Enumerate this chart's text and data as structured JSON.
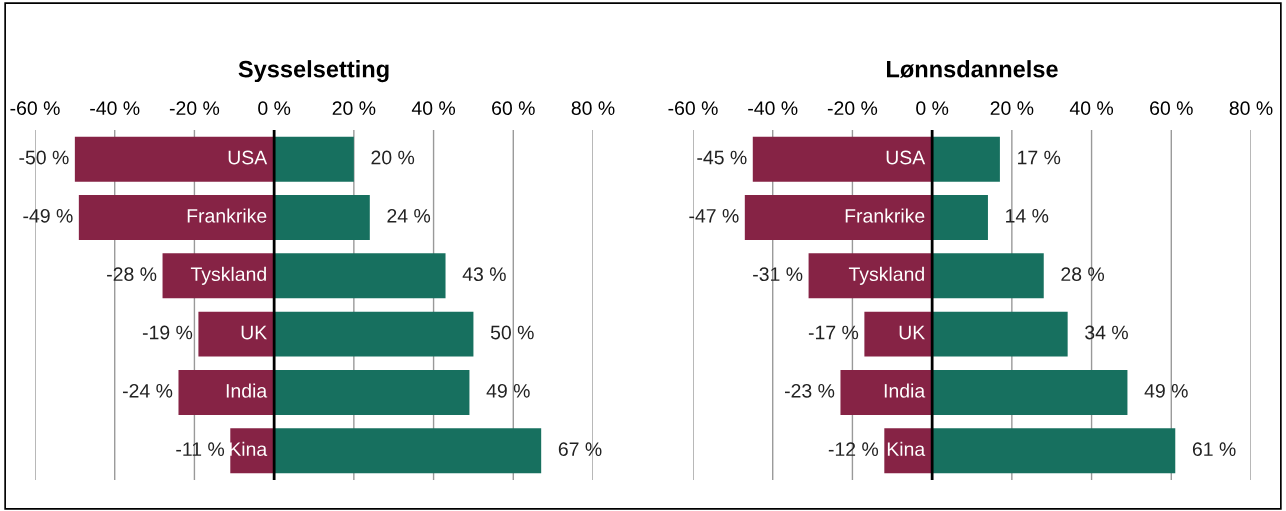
{
  "chart_data": [
    {
      "type": "bar",
      "title": "Sysselsetting",
      "orientation": "horizontal",
      "stacked": true,
      "categories": [
        "USA",
        "Frankrike",
        "Tyskland",
        "UK",
        "India",
        "Kina"
      ],
      "series": [
        {
          "color": "#862345",
          "values": [
            -50,
            -49,
            -28,
            -19,
            -24,
            -11
          ],
          "value_labels": [
            "-50 %",
            "-49 %",
            "-28 %",
            "-19 %",
            "-24 %",
            "-11 %"
          ]
        },
        {
          "color": "#17705f",
          "values": [
            20,
            24,
            43,
            50,
            49,
            67
          ],
          "value_labels": [
            "20 %",
            "24 %",
            "43 %",
            "50 %",
            "49 %",
            "67 %"
          ]
        }
      ],
      "xlim": [
        -60,
        80
      ],
      "xticks": [
        {
          "value": -60,
          "label": "-60 %"
        },
        {
          "value": -40,
          "label": "-40 %"
        },
        {
          "value": -20,
          "label": "-20 %"
        },
        {
          "value": 0,
          "label": "0 %"
        },
        {
          "value": 20,
          "label": "20 %"
        },
        {
          "value": 40,
          "label": "40 %"
        },
        {
          "value": 60,
          "label": "60 %"
        },
        {
          "value": 80,
          "label": "80 %"
        }
      ],
      "grid": "x",
      "legend": false
    },
    {
      "type": "bar",
      "title": "Lønnsdannelse",
      "orientation": "horizontal",
      "stacked": true,
      "categories": [
        "USA",
        "Frankrike",
        "Tyskland",
        "UK",
        "India",
        "Kina"
      ],
      "series": [
        {
          "color": "#862345",
          "values": [
            -45,
            -47,
            -31,
            -17,
            -23,
            -12
          ],
          "value_labels": [
            "-45 %",
            "-47 %",
            "-31 %",
            "-17 %",
            "-23 %",
            "-12 %"
          ]
        },
        {
          "color": "#17705f",
          "values": [
            17,
            14,
            28,
            34,
            49,
            61
          ],
          "value_labels": [
            "17 %",
            "14 %",
            "28 %",
            "34 %",
            "49 %",
            "61 %"
          ]
        }
      ],
      "xlim": [
        -60,
        80
      ],
      "xticks": [
        {
          "value": -60,
          "label": "-60 %"
        },
        {
          "value": -40,
          "label": "-40 %"
        },
        {
          "value": -20,
          "label": "-20 %"
        },
        {
          "value": 0,
          "label": "0 %"
        },
        {
          "value": 20,
          "label": "20 %"
        },
        {
          "value": 40,
          "label": "40 %"
        },
        {
          "value": 60,
          "label": "60 %"
        },
        {
          "value": 80,
          "label": "80 %"
        }
      ],
      "grid": "x",
      "legend": false
    }
  ]
}
